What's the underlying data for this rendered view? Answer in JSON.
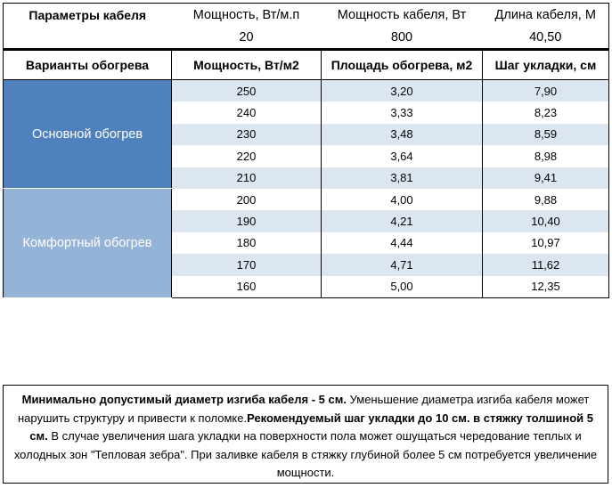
{
  "params": {
    "title": "Параметры кабеля",
    "items": [
      {
        "label": "Мощность, Вт/м.п",
        "value": "20"
      },
      {
        "label": "Мощность кабеля, Вт",
        "value": "800"
      },
      {
        "label": "Длина кабеля, М",
        "value": "40,50"
      }
    ]
  },
  "table": {
    "headers": [
      "Варианты обогрева",
      "Мощность, Вт/м2",
      "Площадь обогрева, м2",
      "Шаг укладки, см"
    ],
    "groups": [
      {
        "name": "Основной обогрев",
        "color": "#4f81bd",
        "rows": [
          [
            "250",
            "3,20",
            "7,90"
          ],
          [
            "240",
            "3,33",
            "8,23"
          ],
          [
            "230",
            "3,48",
            "8,59"
          ],
          [
            "220",
            "3,64",
            "8,98"
          ],
          [
            "210",
            "3,81",
            "9,41"
          ]
        ]
      },
      {
        "name": "Комфортный обогрев",
        "color": "#95b3d7",
        "rows": [
          [
            "200",
            "4,00",
            "9,88"
          ],
          [
            "190",
            "4,21",
            "10,40"
          ],
          [
            "180",
            "4,44",
            "10,97"
          ],
          [
            "170",
            "4,71",
            "11,62"
          ],
          [
            "160",
            "5,00",
            "12,35"
          ]
        ]
      }
    ]
  },
  "note": {
    "parts": [
      {
        "text": "Минимально допустимый диаметр изгиба кабеля - 5 см.",
        "bold": true
      },
      {
        "text": "  Уменьшение диаметра изгиба кабеля может нарушить структуру и привести к поломке.",
        "bold": false
      },
      {
        "text": "Рекомендуемый шаг укладки до 10 см. в стяжку толшиной 5 см.",
        "bold": true
      },
      {
        "text": " В  случае увеличения шага укладки на поверхности пола может ошущаться чередование теплых и холодных зон \"Тепловая зебра\". При заливке кабеля в стяжку глубиной более 5 см потребуется увеличение мощности.",
        "bold": false
      }
    ]
  }
}
